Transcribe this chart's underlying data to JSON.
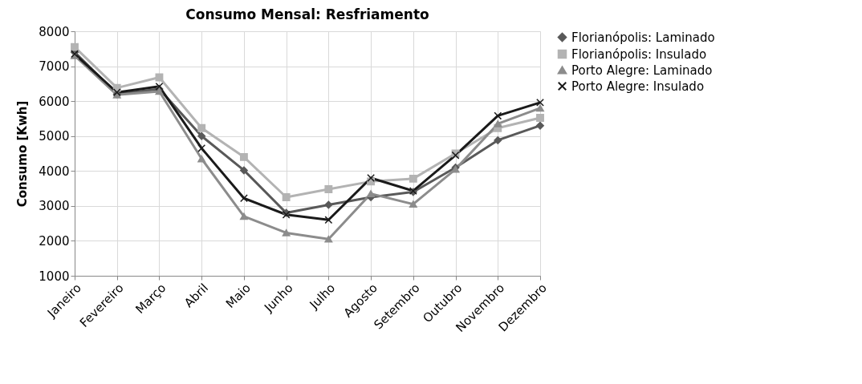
{
  "chart_data": {
    "type": "line",
    "title": "Consumo Mensal: Resfriamento",
    "ylabel": "Consumo [Kwh]",
    "categories": [
      "Janeiro",
      "Fevereiro",
      "Março",
      "Abril",
      "Maio",
      "Junho",
      "Julho",
      "Agosto",
      "Setembro",
      "Outubro",
      "Novembro",
      "Dezembro"
    ],
    "series": [
      {
        "name": "Florianópolis: Laminado",
        "color": "#595959",
        "marker": "diamond",
        "values": [
          7400,
          6200,
          6350,
          5000,
          4020,
          2800,
          3030,
          3250,
          3400,
          4100,
          4880,
          5300
        ]
      },
      {
        "name": "Florianópolis: Insulado",
        "color": "#b3b3b3",
        "marker": "square",
        "values": [
          7550,
          6380,
          6680,
          5230,
          4400,
          3250,
          3480,
          3700,
          3780,
          4500,
          5230,
          5520
        ]
      },
      {
        "name": "Porto Alegre: Laminado",
        "color": "#8c8c8c",
        "marker": "triangle",
        "values": [
          7300,
          6180,
          6280,
          4350,
          2700,
          2230,
          2050,
          3350,
          3050,
          4050,
          5350,
          5800
        ]
      },
      {
        "name": "Porto Alegre: Insulado",
        "color": "#1a1a1a",
        "marker": "cross",
        "values": [
          7350,
          6250,
          6420,
          4650,
          3220,
          2750,
          2600,
          3800,
          3430,
          4450,
          5580,
          5960
        ]
      }
    ],
    "ylim": [
      1000,
      8000
    ],
    "yticks": [
      1000,
      2000,
      3000,
      4000,
      5000,
      6000,
      7000,
      8000
    ],
    "grid": true,
    "legend": "right",
    "line_style": "solid"
  }
}
